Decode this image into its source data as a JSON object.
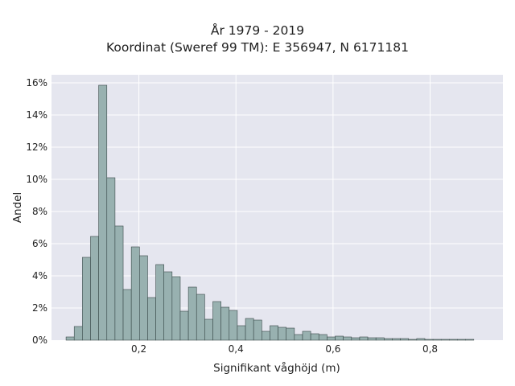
{
  "chart_data": {
    "type": "bar",
    "title": [
      "År 1979 - 2019",
      "Koordinat (Sweref 99 TM): E 356947, N 6171181"
    ],
    "xlabel": "Signifikant våghöjd (m)",
    "ylabel": "Andel",
    "xlim": [
      0.02,
      0.95
    ],
    "ylim": [
      0,
      16.5
    ],
    "xticks": [
      {
        "value": 0.2,
        "label": "0,2"
      },
      {
        "value": 0.4,
        "label": "0,4"
      },
      {
        "value": 0.6,
        "label": "0,6"
      },
      {
        "value": 0.8,
        "label": "0,8"
      }
    ],
    "yticks": [
      {
        "value": 0,
        "label": "0%"
      },
      {
        "value": 2,
        "label": "2%"
      },
      {
        "value": 4,
        "label": "4%"
      },
      {
        "value": 6,
        "label": "6%"
      },
      {
        "value": 8,
        "label": "8%"
      },
      {
        "value": 10,
        "label": "10%"
      },
      {
        "value": 12,
        "label": "12%"
      },
      {
        "value": 14,
        "label": "14%"
      },
      {
        "value": 16,
        "label": "16%"
      }
    ],
    "grid": true,
    "bin_width": 0.0168,
    "bin_start": 0.05,
    "values": [
      0.2,
      0.85,
      5.15,
      6.45,
      15.85,
      10.1,
      7.1,
      3.15,
      5.8,
      5.25,
      2.65,
      4.7,
      4.25,
      3.95,
      1.8,
      3.3,
      2.85,
      1.3,
      2.4,
      2.05,
      1.85,
      0.9,
      1.35,
      1.25,
      0.55,
      0.9,
      0.8,
      0.75,
      0.35,
      0.55,
      0.4,
      0.35,
      0.2,
      0.25,
      0.2,
      0.15,
      0.2,
      0.15,
      0.15,
      0.1,
      0.1,
      0.1,
      0.05,
      0.1,
      0.05,
      0.05,
      0.05,
      0.05,
      0.05,
      0.05
    ],
    "colors": {
      "bar_fill": "#98b1b0",
      "bar_edge": "#3a4a4a",
      "plot_bg": "#e5e6ef",
      "grid": "#ffffff"
    }
  }
}
